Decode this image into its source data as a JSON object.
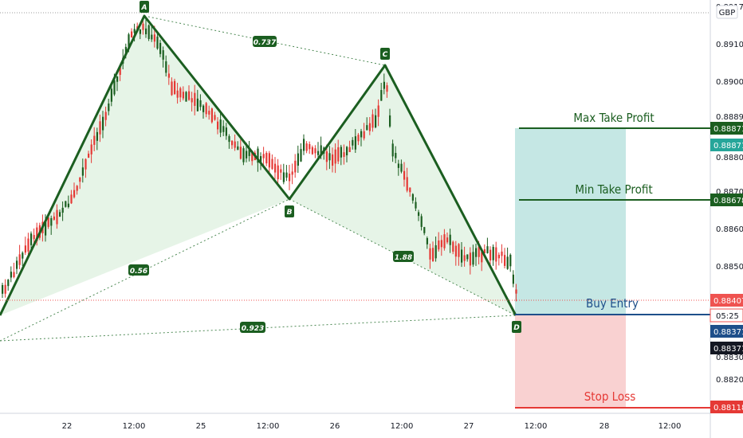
{
  "chart_data": {
    "type": "candlestick",
    "currency": "GBP",
    "y_ticks": [
      0.891,
      0.89,
      0.8889,
      0.888,
      0.887,
      0.886,
      0.885,
      0.883,
      0.882
    ],
    "y_tick_labels": [
      "0.89100",
      "0.89000",
      "0.88890",
      "0.88800",
      "0.88700",
      "0.88600",
      "0.88500",
      "0.88300",
      "0.88200"
    ],
    "x_ticks": [
      "22",
      "12:00",
      "25",
      "12:00",
      "26",
      "12:00",
      "27",
      "12:00",
      "28",
      "12:00"
    ],
    "pattern": {
      "points": [
        {
          "name": "A",
          "price": 0.8917
        },
        {
          "name": "B",
          "price": 0.8869
        },
        {
          "name": "C",
          "price": 0.89045
        },
        {
          "name": "D",
          "price": 0.88371
        }
      ],
      "ratios": [
        {
          "label": "0.737"
        },
        {
          "label": "0.56"
        },
        {
          "label": "1.88"
        },
        {
          "label": "0.923"
        }
      ]
    },
    "levels": [
      {
        "label": "Max Take Profit",
        "price": 0.88871,
        "tag": "0.88871"
      },
      {
        "label": "Min Take Profit",
        "price": 0.88678,
        "tag": "0.88678"
      },
      {
        "label": "Buy Entry",
        "price": 0.88371,
        "tag": "0.88371"
      },
      {
        "label": "Stop Loss",
        "price": 0.88118,
        "tag": "0.88118"
      }
    ],
    "price_tags": [
      {
        "value": "0.88871",
        "color": "#26a69a"
      },
      {
        "value": "0.88407",
        "color": "#ef5350"
      },
      {
        "value": "05:25",
        "color": "#ffffff"
      },
      {
        "value": "0.88371",
        "color": "#1e4f8a"
      },
      {
        "value": "0.88371",
        "color": "#131722"
      }
    ],
    "top_axis_partial": "0.89170",
    "colors": {
      "pattern": "#1b5e20",
      "up": "#1b5e20",
      "down": "#e53935",
      "target_zone": "#b2dfdb",
      "stop_zone": "#f8c9c9"
    }
  }
}
